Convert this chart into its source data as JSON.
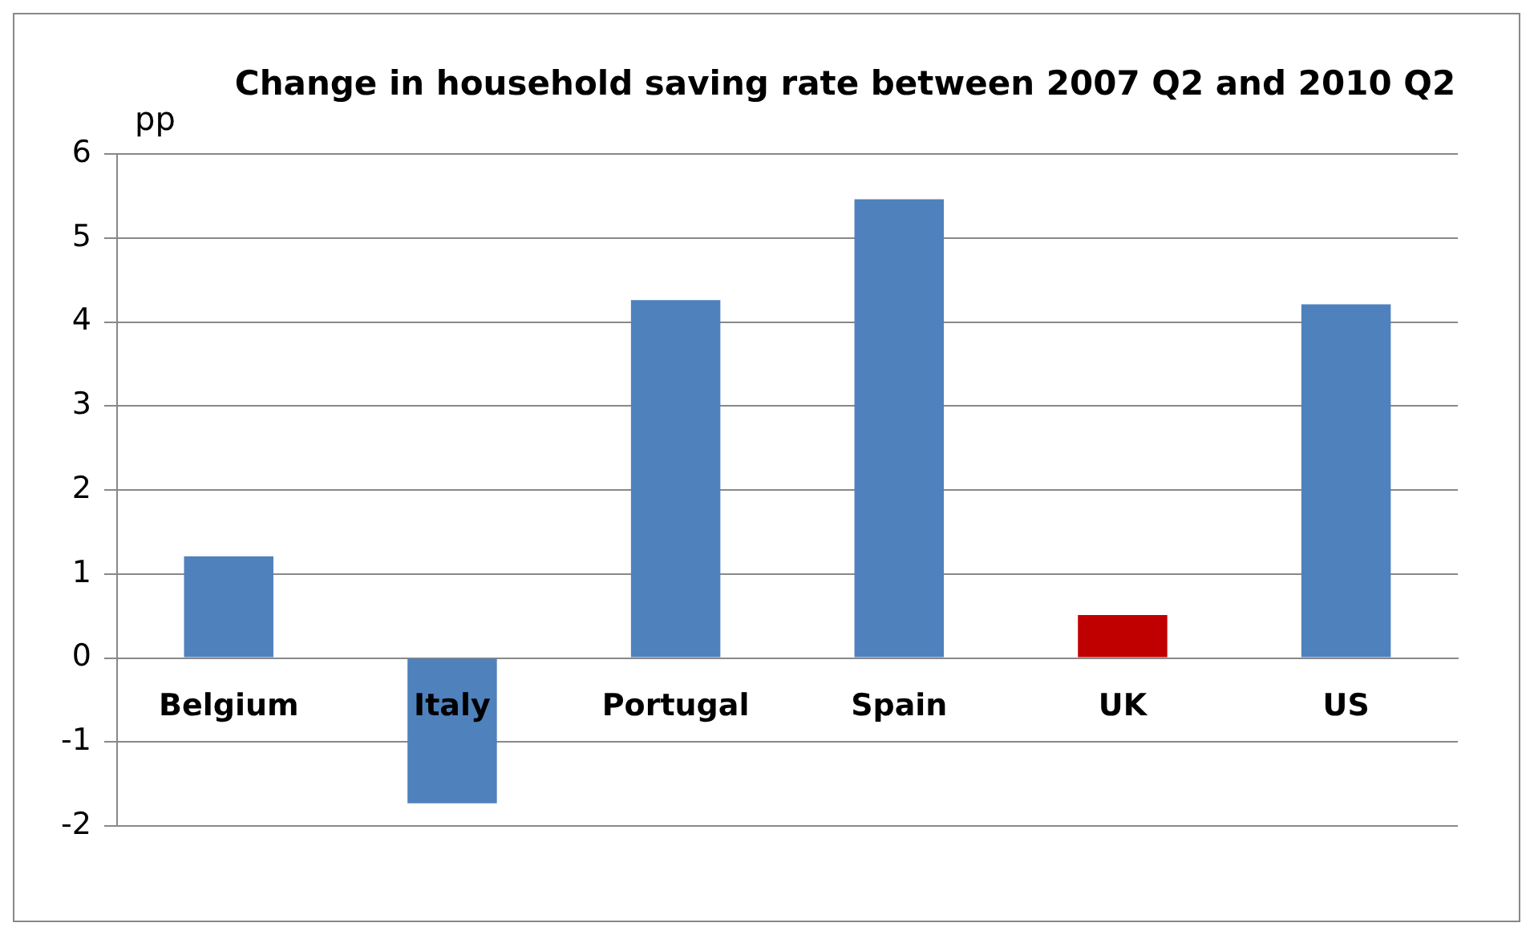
{
  "chart_data": {
    "type": "bar",
    "title": "Change in household saving rate between 2007 Q2 and 2010 Q2",
    "ylabel": "pp",
    "categories": [
      "Belgium",
      "Italy",
      "Portugal",
      "Spain",
      "UK",
      "US"
    ],
    "values": [
      1.21,
      -1.73,
      4.26,
      5.46,
      0.51,
      4.21
    ],
    "colors": [
      "#4f81bd",
      "#4f81bd",
      "#4f81bd",
      "#4f81bd",
      "#c00000",
      "#4f81bd"
    ],
    "ylim": [
      -2,
      6
    ],
    "yticks": [
      -2,
      -1,
      0,
      1,
      2,
      3,
      4,
      5,
      6
    ],
    "grid": "y",
    "legend": false
  }
}
